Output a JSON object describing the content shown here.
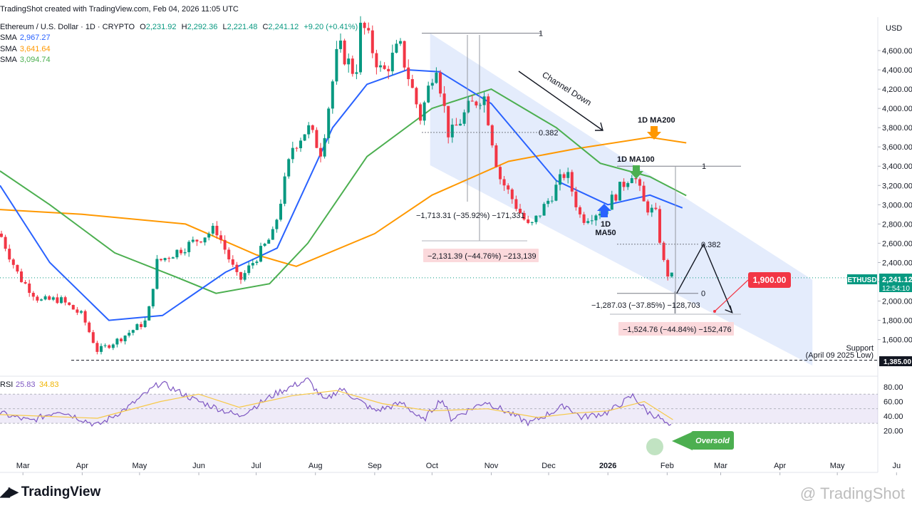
{
  "header": {
    "created": "TradingShot created with TradingView.com, Feb 04, 2026 11:05 UTC",
    "symbol": "Ethereum / U.S. Dollar · 1D · CRYPTO",
    "o_label": "O",
    "o": "2,231.92",
    "h_label": "H",
    "h": "2,292.36",
    "l_label": "L",
    "l": "2,221.48",
    "c_label": "C",
    "c": "2,241.12",
    "change": "+9.20 (+0.41%)",
    "sma1_label": "SMA",
    "sma1": "2,967.27",
    "sma2_label": "SMA",
    "sma2": "3,641.64",
    "sma3_label": "SMA",
    "sma3": "3,094.74"
  },
  "footer": {
    "brand": "TradingView",
    "watermark": "@ TradingShot"
  },
  "colors": {
    "up": "#089981",
    "down": "#f23645",
    "ma50": "#2962ff",
    "ma100": "#4caf50",
    "ma200": "#ff9800",
    "rsi": "#7e57c2",
    "rsi_ma": "#f7c948",
    "channel": "#dbe6fb"
  },
  "chart_data": {
    "type": "candlestick",
    "currency": "USD",
    "ylim": [
      1270,
      4900
    ],
    "y_ticks": [
      1600,
      1800,
      2000,
      2200,
      2400,
      2600,
      2800,
      3000,
      3200,
      3400,
      3600,
      3800,
      4000,
      4200,
      4400,
      4600
    ],
    "y_tick_labels": [
      "1,600.00",
      "1,800.00",
      "2,000.00",
      "2,200.00",
      "2,400.00",
      "2,600.00",
      "2,800.00",
      "3,000.00",
      "3,200.00",
      "3,400.00",
      "3,600.00",
      "3,800.00",
      "4,000.00",
      "4,200.00",
      "4,400.00",
      "4,600.00"
    ],
    "x_labels": [
      "Mar",
      "Apr",
      "May",
      "Jun",
      "Jul",
      "Aug",
      "Sep",
      "Oct",
      "Nov",
      "Dec",
      "2026",
      "Feb",
      "Mar",
      "Apr",
      "May",
      "Ju"
    ],
    "price_path": [
      {
        "date": "2025-02-17",
        "price": 2700
      },
      {
        "date": "2025-02-27",
        "price": 2250
      },
      {
        "date": "2025-03-10",
        "price": 2000
      },
      {
        "date": "2025-03-20",
        "price": 2020
      },
      {
        "date": "2025-04-01",
        "price": 1850
      },
      {
        "date": "2025-04-09",
        "price": 1480
      },
      {
        "date": "2025-04-20",
        "price": 1600
      },
      {
        "date": "2025-05-05",
        "price": 1800
      },
      {
        "date": "2025-05-10",
        "price": 2400
      },
      {
        "date": "2025-05-28",
        "price": 2600
      },
      {
        "date": "2025-06-10",
        "price": 2750
      },
      {
        "date": "2025-06-22",
        "price": 2200
      },
      {
        "date": "2025-07-01",
        "price": 2450
      },
      {
        "date": "2025-07-10",
        "price": 2700
      },
      {
        "date": "2025-07-20",
        "price": 3600
      },
      {
        "date": "2025-07-28",
        "price": 3800
      },
      {
        "date": "2025-08-04",
        "price": 3550
      },
      {
        "date": "2025-08-13",
        "price": 4650
      },
      {
        "date": "2025-08-22",
        "price": 4350
      },
      {
        "date": "2025-08-25",
        "price": 4900
      },
      {
        "date": "2025-09-05",
        "price": 4350
      },
      {
        "date": "2025-09-14",
        "price": 4650
      },
      {
        "date": "2025-09-25",
        "price": 3900
      },
      {
        "date": "2025-10-03",
        "price": 4500
      },
      {
        "date": "2025-10-10",
        "price": 3700
      },
      {
        "date": "2025-10-20",
        "price": 4000
      },
      {
        "date": "2025-10-28",
        "price": 4150
      },
      {
        "date": "2025-11-05",
        "price": 3300
      },
      {
        "date": "2025-11-21",
        "price": 2750
      },
      {
        "date": "2025-12-01",
        "price": 3050
      },
      {
        "date": "2025-12-10",
        "price": 3350
      },
      {
        "date": "2025-12-18",
        "price": 2850
      },
      {
        "date": "2025-12-31",
        "price": 2970
      },
      {
        "date": "2026-01-14",
        "price": 3350
      },
      {
        "date": "2026-01-20",
        "price": 3000
      },
      {
        "date": "2026-01-26",
        "price": 2900
      },
      {
        "date": "2026-01-31",
        "price": 2300
      },
      {
        "date": "2026-02-04",
        "price": 2241
      }
    ],
    "ma50": [
      {
        "date": "2025-02-17",
        "price": 3200
      },
      {
        "date": "2025-03-15",
        "price": 2400
      },
      {
        "date": "2025-04-15",
        "price": 1800
      },
      {
        "date": "2025-05-13",
        "price": 1850
      },
      {
        "date": "2025-06-15",
        "price": 2300
      },
      {
        "date": "2025-07-12",
        "price": 2550
      },
      {
        "date": "2025-08-10",
        "price": 3800
      },
      {
        "date": "2025-08-28",
        "price": 4250
      },
      {
        "date": "2025-09-18",
        "price": 4400
      },
      {
        "date": "2025-10-05",
        "price": 4380
      },
      {
        "date": "2025-11-01",
        "price": 4050
      },
      {
        "date": "2025-11-18",
        "price": 3650
      },
      {
        "date": "2025-12-05",
        "price": 3250
      },
      {
        "date": "2026-01-01",
        "price": 3000
      },
      {
        "date": "2026-01-23",
        "price": 3100
      },
      {
        "date": "2026-02-09",
        "price": 2967
      }
    ],
    "ma100": [
      {
        "date": "2025-02-17",
        "price": 3350
      },
      {
        "date": "2025-03-15",
        "price": 3000
      },
      {
        "date": "2025-04-18",
        "price": 2500
      },
      {
        "date": "2025-05-20",
        "price": 2250
      },
      {
        "date": "2025-06-10",
        "price": 2080
      },
      {
        "date": "2025-07-08",
        "price": 2180
      },
      {
        "date": "2025-07-28",
        "price": 2600
      },
      {
        "date": "2025-08-28",
        "price": 3500
      },
      {
        "date": "2025-10-01",
        "price": 4000
      },
      {
        "date": "2025-11-01",
        "price": 4200
      },
      {
        "date": "2025-12-05",
        "price": 3800
      },
      {
        "date": "2025-12-28",
        "price": 3430
      },
      {
        "date": "2026-01-23",
        "price": 3290
      },
      {
        "date": "2026-02-11",
        "price": 3095
      }
    ],
    "ma200": [
      {
        "date": "2025-02-17",
        "price": 2950
      },
      {
        "date": "2025-04-01",
        "price": 2900
      },
      {
        "date": "2025-05-25",
        "price": 2800
      },
      {
        "date": "2025-07-01",
        "price": 2480
      },
      {
        "date": "2025-07-22",
        "price": 2360
      },
      {
        "date": "2025-09-01",
        "price": 2700
      },
      {
        "date": "2025-10-01",
        "price": 3100
      },
      {
        "date": "2025-11-10",
        "price": 3450
      },
      {
        "date": "2025-12-15",
        "price": 3580
      },
      {
        "date": "2026-01-23",
        "price": 3700
      },
      {
        "date": "2026-02-11",
        "price": 3642
      }
    ],
    "channel": {
      "upper": [
        {
          "date": "2025-09-30",
          "price": 4780
        },
        {
          "date": "2026-04-18",
          "price": 2220
        }
      ],
      "lower": [
        {
          "date": "2025-09-30",
          "price": 3410
        },
        {
          "date": "2026-04-18",
          "price": 1330
        }
      ],
      "label": "Channel Down"
    },
    "fib_levels": [
      {
        "label": "1",
        "price": 4780
      },
      {
        "label": "0.382",
        "price": 3750
      },
      {
        "label": "1",
        "price": 3400
      },
      {
        "label": "0.382",
        "price": 2590
      },
      {
        "label": "0",
        "price": 2080
      }
    ],
    "measures": [
      {
        "label": "−1,713.31 (−35.92%) −171,331",
        "style": "plain"
      },
      {
        "label": "−2,131.39 (−44.76%) −213,139",
        "style": "red"
      },
      {
        "label": "−1,287.03 (−37.85%) −128,703",
        "style": "plain"
      },
      {
        "label": "−1,524.76 (−44.84%) −152,476",
        "style": "red"
      }
    ],
    "projection": [
      {
        "date": "2026-02-06",
        "price": 2080
      },
      {
        "date": "2026-02-20",
        "price": 2590
      },
      {
        "date": "2026-03-07",
        "price": 1880
      }
    ],
    "target": {
      "label": "1,900.00",
      "price": 1900
    },
    "support": {
      "price": 1385,
      "label": "1,385.00",
      "text1": "Support",
      "text2": "(April 09 2025 Low)"
    },
    "annotations": {
      "ma200": "1D MA200",
      "ma100": "1D MA100",
      "ma50_1": "1D",
      "ma50_2": "MA50"
    },
    "last_price": {
      "label": "2,241.12",
      "symbol": "ETHUSD",
      "countdown": "12:54:10",
      "price": 2241
    },
    "rsi": {
      "label": "RSI",
      "value": "25.83",
      "ma": "34.83",
      "ylim": [
        15,
        95
      ],
      "ticks": [
        20,
        40,
        60,
        80
      ],
      "tick_labels": [
        "20.00",
        "40.00",
        "60.00",
        "80.00"
      ],
      "band": [
        30,
        70
      ],
      "path": [
        {
          "date": "2025-02-17",
          "v": 44
        },
        {
          "date": "2025-03-05",
          "v": 33
        },
        {
          "date": "2025-03-20",
          "v": 48
        },
        {
          "date": "2025-04-09",
          "v": 27
        },
        {
          "date": "2025-04-25",
          "v": 52
        },
        {
          "date": "2025-05-12",
          "v": 86
        },
        {
          "date": "2025-05-30",
          "v": 62
        },
        {
          "date": "2025-06-22",
          "v": 40
        },
        {
          "date": "2025-07-12",
          "v": 72
        },
        {
          "date": "2025-07-28",
          "v": 90
        },
        {
          "date": "2025-08-06",
          "v": 60
        },
        {
          "date": "2025-08-14",
          "v": 78
        },
        {
          "date": "2025-09-01",
          "v": 47
        },
        {
          "date": "2025-09-16",
          "v": 58
        },
        {
          "date": "2025-09-26",
          "v": 33
        },
        {
          "date": "2025-10-06",
          "v": 64
        },
        {
          "date": "2025-10-11",
          "v": 36
        },
        {
          "date": "2025-10-29",
          "v": 60
        },
        {
          "date": "2025-11-21",
          "v": 30
        },
        {
          "date": "2025-12-10",
          "v": 55
        },
        {
          "date": "2025-12-18",
          "v": 38
        },
        {
          "date": "2026-01-01",
          "v": 45
        },
        {
          "date": "2026-01-14",
          "v": 68
        },
        {
          "date": "2026-01-22",
          "v": 45
        },
        {
          "date": "2026-01-28",
          "v": 38
        },
        {
          "date": "2026-02-02",
          "v": 24
        },
        {
          "date": "2026-02-04",
          "v": 26
        }
      ],
      "ma_path": [
        {
          "date": "2025-02-17",
          "v": 42
        },
        {
          "date": "2025-04-09",
          "v": 37
        },
        {
          "date": "2025-05-12",
          "v": 60
        },
        {
          "date": "2025-06-01",
          "v": 70
        },
        {
          "date": "2025-06-22",
          "v": 52
        },
        {
          "date": "2025-07-20",
          "v": 68
        },
        {
          "date": "2025-08-12",
          "v": 75
        },
        {
          "date": "2025-09-05",
          "v": 57
        },
        {
          "date": "2025-09-30",
          "v": 47
        },
        {
          "date": "2025-10-30",
          "v": 50
        },
        {
          "date": "2025-11-25",
          "v": 38
        },
        {
          "date": "2025-12-15",
          "v": 44
        },
        {
          "date": "2026-01-01",
          "v": 47
        },
        {
          "date": "2026-01-20",
          "v": 60
        },
        {
          "date": "2026-02-04",
          "v": 35
        }
      ],
      "oversold": "Oversold"
    }
  }
}
